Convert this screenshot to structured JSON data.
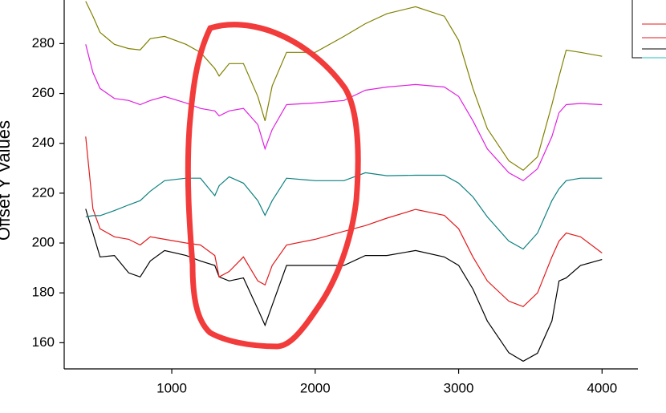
{
  "chart_data": {
    "type": "line",
    "y_label": "Offset Y Values",
    "x": [
      400,
      450,
      500,
      600,
      700,
      780,
      850,
      950,
      1100,
      1200,
      1300,
      1330,
      1400,
      1500,
      1600,
      1650,
      1700,
      1800,
      2000,
      2200,
      2350,
      2500,
      2700,
      2900,
      3000,
      3100,
      3200,
      3350,
      3450,
      3550,
      3650,
      3700,
      3750,
      3850,
      4000
    ],
    "series": [
      {
        "color": "#000000",
        "values": [
          213.7,
          204,
          194.4,
          195,
          188,
          186.4,
          192.8,
          197,
          195,
          192.8,
          191,
          186.4,
          184.8,
          186,
          173.5,
          167,
          175,
          191,
          191,
          191,
          195,
          195,
          197,
          194.4,
          191,
          181.5,
          168.7,
          156,
          152.6,
          155.8,
          168.7,
          184.8,
          186,
          191,
          193.4
        ]
      },
      {
        "color": "#e31a1c",
        "values": [
          242.7,
          213.7,
          205.7,
          202.5,
          201.5,
          199.2,
          202.5,
          201.5,
          200,
          199.2,
          195,
          186.4,
          188.6,
          194.4,
          184.8,
          183.2,
          191,
          199.2,
          201.5,
          204.7,
          207,
          210,
          213.5,
          211.1,
          205.7,
          194.4,
          184.8,
          176.7,
          174.5,
          180,
          194.4,
          200.8,
          204,
          202.5,
          196
        ]
      },
      {
        "color": "#0e8080",
        "values": [
          210.5,
          211,
          211,
          213,
          215.3,
          217,
          220.8,
          225,
          226,
          226,
          219,
          223,
          226.6,
          224,
          217,
          211.1,
          217,
          226,
          225,
          225,
          228.2,
          227,
          227.2,
          227.2,
          224,
          218.5,
          210.5,
          200.8,
          197.6,
          204,
          217,
          221.8,
          225,
          226,
          226
        ]
      },
      {
        "color": "#e020e0",
        "values": [
          279.7,
          268.4,
          262,
          258,
          257.2,
          255.5,
          257.2,
          258.8,
          256.2,
          254,
          253,
          251,
          253,
          254,
          247.5,
          237.8,
          245.5,
          255.5,
          256.2,
          257.2,
          261.3,
          262.6,
          263.6,
          262.6,
          258.8,
          249,
          237.8,
          228.2,
          225,
          229.8,
          242.7,
          252.3,
          255.5,
          256,
          255.5
        ]
      },
      {
        "color": "#808000",
        "values": [
          297,
          291,
          284.5,
          279.7,
          278,
          277.5,
          282,
          282.9,
          279.7,
          276.5,
          270,
          267,
          272,
          272,
          258.8,
          249,
          263,
          276.5,
          276.5,
          282.9,
          288,
          292,
          294.8,
          291,
          281.3,
          262,
          245.9,
          233,
          229.2,
          234.6,
          255.5,
          266.8,
          277.4,
          276.5,
          274.9
        ]
      }
    ],
    "xlim": [
      250,
      4250
    ],
    "ylim": [
      149.5,
      297.5
    ],
    "xticks": [
      1000,
      2000,
      3000,
      4000
    ],
    "yticks": [
      160,
      180,
      200,
      220,
      240,
      260,
      280
    ]
  }
}
